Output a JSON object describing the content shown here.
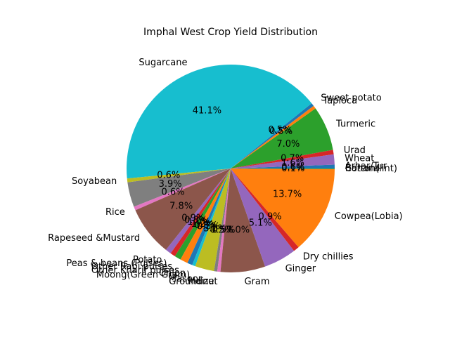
{
  "chart_data": {
    "type": "pie",
    "title": "Imphal West Crop Yield Distribution",
    "start_angle_deg": 0,
    "direction": "counterclockwise",
    "slices": [
      {
        "label": "Arhar/Tur",
        "pct": "0.6%",
        "value": 0.6,
        "color": "#1f77b4"
      },
      {
        "label": "Wheat",
        "pct": "1.6%",
        "value": 1.6,
        "color": "#9467bd"
      },
      {
        "label": "Urad",
        "pct": "0.7%",
        "value": 0.7,
        "color": "#d62728"
      },
      {
        "label": "Turmeric",
        "pct": "7.0%",
        "value": 7.0,
        "color": "#2ca02c"
      },
      {
        "label": "Tapioca",
        "pct": "0.5%",
        "value": 0.5,
        "color": "#ff7f0e"
      },
      {
        "label": "Sweet potato",
        "pct": "0.5%",
        "value": 0.5,
        "color": "#1f77b4"
      },
      {
        "label": "Sugarcane",
        "pct": "41.1%",
        "value": 41.1,
        "color": "#17becf"
      },
      {
        "label": "Soyabean",
        "pct": "0.6%",
        "value": 0.6,
        "color": "#bcbd22"
      },
      {
        "label": "",
        "pct": "3.9%",
        "value": 3.9,
        "color": "#7f7f7f"
      },
      {
        "label": "Rice",
        "pct": "0.6%",
        "value": 0.6,
        "color": "#e377c2"
      },
      {
        "label": "Rapeseed &Mustard",
        "pct": "7.8%",
        "value": 7.8,
        "color": "#8c564b"
      },
      {
        "label": "Potato",
        "pct": "0.9%",
        "value": 0.9,
        "color": "#9467bd"
      },
      {
        "label": "Peas & beans (Pulses)",
        "pct": "0.8%",
        "value": 0.8,
        "color": "#d62728"
      },
      {
        "label": "Other Rabi pulses",
        "pct": "1.0%",
        "value": 1.0,
        "color": "#2ca02c"
      },
      {
        "label": "Other Kharif pulses",
        "pct": "1.2%",
        "value": 1.2,
        "color": "#ff7f0e"
      },
      {
        "label": "Onion",
        "pct": "0.8%",
        "value": 0.8,
        "color": "#1f77b4"
      },
      {
        "label": "Moong(Green Gram)",
        "pct": "0.5%",
        "value": 0.5,
        "color": "#17becf"
      },
      {
        "label": "Masoor",
        "pct": "3.0%",
        "value": 3.0,
        "color": "#bcbd22"
      },
      {
        "label": "Maize",
        "pct": "0.5%",
        "value": 0.5,
        "color": "#7f7f7f"
      },
      {
        "label": "Groundnut",
        "pct": "0.5%",
        "value": 0.5,
        "color": "#e377c2"
      },
      {
        "label": "Gram",
        "pct": "7.0%",
        "value": 7.0,
        "color": "#8c564b"
      },
      {
        "label": "Ginger",
        "pct": "5.1%",
        "value": 5.1,
        "color": "#9467bd"
      },
      {
        "label": "Dry chillies",
        "pct": "0.9%",
        "value": 0.9,
        "color": "#d62728"
      },
      {
        "label": "Cowpea(Lobia)",
        "pct": "13.7%",
        "value": 13.7,
        "color": "#ff7f0e"
      },
      {
        "label": "Cotton(lint)",
        "pct": "0.1%",
        "value": 0.1,
        "color": "#2ca02c"
      },
      {
        "label": "Banana",
        "pct": "",
        "value": 0.0,
        "color": "#1f77b4"
      }
    ]
  }
}
